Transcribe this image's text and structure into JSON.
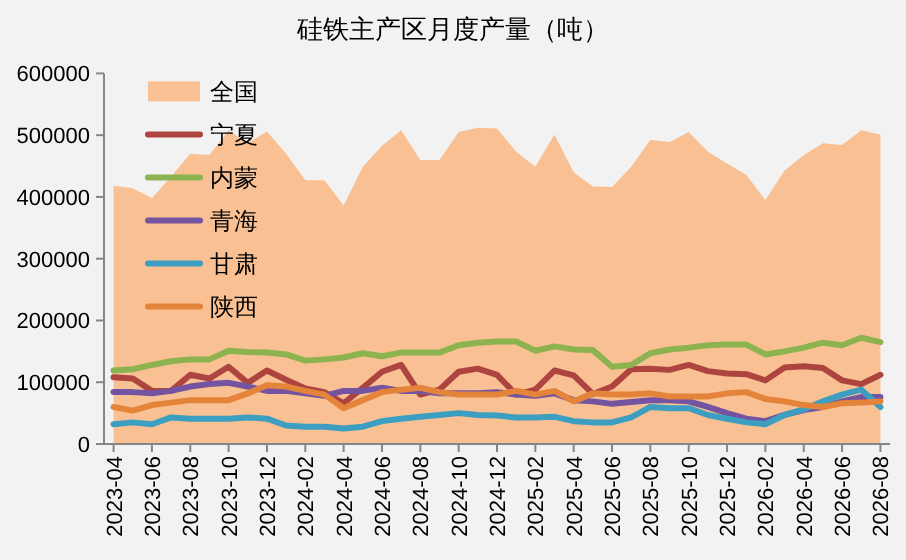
{
  "chart_data": {
    "type": "line",
    "title": "硅铁主产区月度产量（吨）",
    "categories": [
      "2023-04",
      null,
      "2023-06",
      null,
      "2023-08",
      null,
      "2023-10",
      null,
      "2023-12",
      null,
      "2024-02",
      null,
      "2024-04",
      null,
      "2024-06",
      null,
      "2024-08",
      null,
      "2024-10",
      null,
      "2024-12",
      null,
      "2025-02",
      null,
      "2025-04",
      null,
      "2025-06",
      null,
      "2025-08",
      null,
      "2025-10",
      null,
      "2025-12",
      null,
      "2026-02",
      null,
      "2026-04",
      null,
      "2026-06",
      null,
      "2026-08"
    ],
    "ylim": [
      0,
      600000
    ],
    "yticks": [
      0,
      100000,
      200000,
      300000,
      400000,
      500000,
      600000
    ],
    "grid": false,
    "legend": "top left",
    "marker": "none",
    "line_style": "solid",
    "series": [
      {
        "name": "全国",
        "type": "area",
        "color": "#f9c193",
        "values": [
          418000,
          414000,
          398000,
          433000,
          470000,
          468000,
          508000,
          487000,
          506000,
          470000,
          427000,
          427000,
          386000,
          449000,
          483000,
          508000,
          460000,
          460000,
          505000,
          512000,
          511000,
          473000,
          449000,
          501000,
          440000,
          417000,
          416000,
          449000,
          492000,
          489000,
          505000,
          473000,
          454000,
          436000,
          395000,
          443000,
          468000,
          487000,
          484000,
          508000,
          501000
        ]
      },
      {
        "name": "宁夏",
        "color": "#ad4440",
        "values": [
          108000,
          106000,
          86000,
          86000,
          112000,
          106000,
          125000,
          99000,
          119000,
          104000,
          90000,
          84000,
          66000,
          91000,
          117000,
          128000,
          80000,
          88000,
          117000,
          122000,
          112000,
          80000,
          88000,
          119000,
          111000,
          81000,
          93000,
          121000,
          122000,
          120000,
          128000,
          118000,
          114000,
          113000,
          103000,
          124000,
          126000,
          123000,
          103000,
          97000,
          112000
        ]
      },
      {
        "name": "内蒙",
        "color": "#8cb34f",
        "values": [
          119000,
          121000,
          128000,
          134000,
          137000,
          137000,
          151000,
          149000,
          148000,
          145000,
          135000,
          137000,
          140000,
          147000,
          142000,
          148000,
          148000,
          148000,
          160000,
          164000,
          166000,
          166000,
          151000,
          158000,
          153000,
          152000,
          125000,
          128000,
          147000,
          153000,
          156000,
          160000,
          161000,
          161000,
          145000,
          150000,
          156000,
          164000,
          160000,
          172000,
          165000
        ]
      },
      {
        "name": "青海",
        "color": "#7453a0",
        "values": [
          84000,
          84000,
          82000,
          86000,
          93000,
          97000,
          99000,
          93000,
          86000,
          86000,
          82000,
          78000,
          86000,
          86000,
          91000,
          86000,
          86000,
          82000,
          82000,
          82000,
          84000,
          80000,
          78000,
          82000,
          71000,
          69000,
          65000,
          68000,
          71000,
          71000,
          69000,
          60000,
          50000,
          41000,
          37000,
          47000,
          55000,
          60000,
          69000,
          76000,
          76000
        ]
      },
      {
        "name": "甘肃",
        "color": "#3c9ec0",
        "values": [
          32000,
          35000,
          32000,
          43000,
          41000,
          41000,
          41000,
          43000,
          41000,
          30000,
          28000,
          28000,
          25000,
          28000,
          37000,
          41000,
          44000,
          47000,
          50000,
          47000,
          46000,
          43000,
          43000,
          44000,
          37000,
          35000,
          35000,
          43000,
          60000,
          58000,
          58000,
          47000,
          41000,
          35000,
          32000,
          47000,
          56000,
          69000,
          80000,
          88000,
          60000
        ]
      },
      {
        "name": "陕西",
        "color": "#e3843a",
        "values": [
          60000,
          54000,
          63000,
          67000,
          71000,
          71000,
          71000,
          82000,
          95000,
          93000,
          86000,
          80000,
          58000,
          71000,
          84000,
          88000,
          91000,
          84000,
          80000,
          80000,
          80000,
          86000,
          80000,
          86000,
          69000,
          82000,
          80000,
          80000,
          82000,
          77000,
          77000,
          77000,
          82000,
          84000,
          73000,
          69000,
          63000,
          60000,
          66000,
          67000,
          69000
        ]
      }
    ]
  }
}
